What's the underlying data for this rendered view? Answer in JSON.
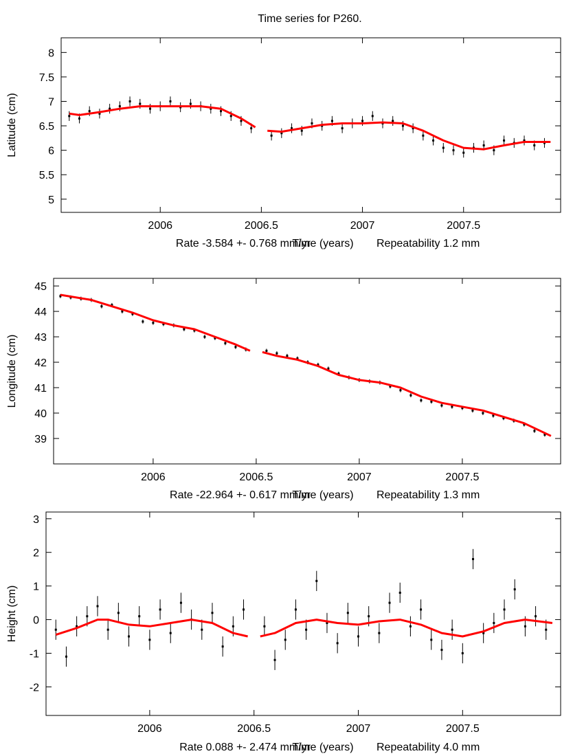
{
  "title": "Time series for P260.",
  "colors": {
    "observations": "#000000",
    "model": "#ff0000",
    "axes": "#000000"
  },
  "chart_data": [
    {
      "type": "scatter",
      "ylabel": "Latitude (cm)",
      "xlabel": "Time (years)",
      "rate_label": "Rate -3.584 +- 0.768 mm/yr",
      "repeatability_label": "Repeatability 1.2 mm",
      "xlim": [
        2005.51,
        2007.98
      ],
      "ylim": [
        4.73,
        8.3
      ],
      "xticks": [
        "2006",
        "2006.5",
        "2007",
        "2007.5"
      ],
      "yticks": [
        "8",
        "7.5",
        "7",
        "6.5",
        "6",
        "5.5",
        "5"
      ],
      "grid": false,
      "observations": {
        "segments": [
          {
            "t_start": 2005.55,
            "t_step": 0.05,
            "err": 0.1,
            "values": [
              6.7,
              6.65,
              6.8,
              6.75,
              6.85,
              6.9,
              7.0,
              6.95,
              6.85,
              6.9,
              7.0,
              6.88,
              6.95,
              6.9,
              6.85,
              6.8,
              6.7,
              6.6,
              6.45
            ]
          },
          {
            "t_start": 2006.55,
            "t_step": 0.05,
            "err": 0.1,
            "values": [
              6.3,
              6.35,
              6.45,
              6.4,
              6.55,
              6.5,
              6.6,
              6.45,
              6.55,
              6.6,
              6.7,
              6.55,
              6.6,
              6.5,
              6.45,
              6.3,
              6.2,
              6.05,
              6.0,
              5.95,
              6.05,
              6.1,
              6.0,
              6.2,
              6.15,
              6.2,
              6.1,
              6.15
            ]
          }
        ]
      },
      "model": [
        [
          [
            2005.55,
            6.75
          ],
          [
            2005.6,
            6.72
          ],
          [
            2005.7,
            6.78
          ],
          [
            2005.8,
            6.85
          ],
          [
            2005.9,
            6.9
          ],
          [
            2006.0,
            6.9
          ],
          [
            2006.1,
            6.9
          ],
          [
            2006.2,
            6.9
          ],
          [
            2006.3,
            6.85
          ],
          [
            2006.4,
            6.65
          ],
          [
            2006.47,
            6.47
          ]
        ],
        [
          [
            2006.53,
            6.4
          ],
          [
            2006.6,
            6.38
          ],
          [
            2006.7,
            6.45
          ],
          [
            2006.8,
            6.52
          ],
          [
            2006.9,
            6.55
          ],
          [
            2007.0,
            6.55
          ],
          [
            2007.1,
            6.57
          ],
          [
            2007.2,
            6.55
          ],
          [
            2007.3,
            6.4
          ],
          [
            2007.4,
            6.2
          ],
          [
            2007.5,
            6.05
          ],
          [
            2007.6,
            6.02
          ],
          [
            2007.7,
            6.1
          ],
          [
            2007.8,
            6.17
          ],
          [
            2007.93,
            6.17
          ]
        ]
      ]
    },
    {
      "type": "scatter",
      "ylabel": "Longitude (cm)",
      "xlabel": "Time (years)",
      "rate_label": "Rate -22.964 +- 0.617 mm/yr",
      "repeatability_label": "Repeatability 1.3 mm",
      "xlim": [
        2005.517,
        2007.977
      ],
      "ylim": [
        38.0,
        45.3
      ],
      "xticks": [
        "2006",
        "2006.5",
        "2007",
        "2007.5"
      ],
      "yticks": [
        "45",
        "44",
        "43",
        "42",
        "41",
        "40",
        "39"
      ],
      "grid": false,
      "observations": {
        "segments": [
          {
            "t_start": 2005.55,
            "t_step": 0.05,
            "err": 0.08,
            "values": [
              44.6,
              44.55,
              44.5,
              44.45,
              44.2,
              44.25,
              44.0,
              43.9,
              43.6,
              43.55,
              43.5,
              43.45,
              43.3,
              43.25,
              43.0,
              42.95,
              42.75,
              42.6,
              42.5
            ]
          },
          {
            "t_start": 2006.55,
            "t_step": 0.05,
            "err": 0.08,
            "values": [
              42.45,
              42.35,
              42.25,
              42.15,
              42.0,
              41.9,
              41.75,
              41.55,
              41.4,
              41.3,
              41.25,
              41.2,
              41.05,
              40.9,
              40.7,
              40.5,
              40.45,
              40.3,
              40.25,
              40.2,
              40.1,
              40.0,
              39.9,
              39.8,
              39.7,
              39.55,
              39.3,
              39.15
            ]
          }
        ]
      },
      "model": [
        [
          [
            2005.55,
            44.65
          ],
          [
            2005.7,
            44.45
          ],
          [
            2005.8,
            44.2
          ],
          [
            2005.9,
            43.95
          ],
          [
            2006.0,
            43.65
          ],
          [
            2006.1,
            43.45
          ],
          [
            2006.2,
            43.3
          ],
          [
            2006.3,
            43.0
          ],
          [
            2006.4,
            42.7
          ],
          [
            2006.47,
            42.45
          ]
        ],
        [
          [
            2006.53,
            42.4
          ],
          [
            2006.6,
            42.25
          ],
          [
            2006.7,
            42.1
          ],
          [
            2006.8,
            41.85
          ],
          [
            2006.9,
            41.5
          ],
          [
            2007.0,
            41.3
          ],
          [
            2007.1,
            41.2
          ],
          [
            2007.2,
            41.0
          ],
          [
            2007.3,
            40.65
          ],
          [
            2007.4,
            40.4
          ],
          [
            2007.5,
            40.25
          ],
          [
            2007.6,
            40.1
          ],
          [
            2007.7,
            39.85
          ],
          [
            2007.8,
            39.6
          ],
          [
            2007.93,
            39.1
          ]
        ]
      ]
    },
    {
      "type": "scatter",
      "ylabel": "Height (cm)",
      "xlabel": "Time (years)",
      "rate_label": "Rate 0.088 +- 2.474 mm/yr",
      "repeatability_label": "Repeatability 4.0 mm",
      "xlim": [
        2005.503,
        2007.97
      ],
      "ylim": [
        -2.85,
        3.2
      ],
      "xticks": [
        "2006",
        "2006.5",
        "2007",
        "2007.5"
      ],
      "yticks": [
        "3",
        "2",
        "1",
        "0",
        "-1",
        "-2"
      ],
      "grid": false,
      "observations": {
        "segments": [
          {
            "t_start": 2005.55,
            "t_step": 0.05,
            "err": 0.3,
            "values": [
              -0.3,
              -1.1,
              -0.2,
              0.1,
              0.4,
              -0.3,
              0.2,
              -0.5,
              0.1,
              -0.6,
              0.3,
              -0.4,
              0.5,
              0.0,
              -0.3,
              0.2,
              -0.8,
              -0.2,
              0.3
            ]
          },
          {
            "t_start": 2006.55,
            "t_step": 0.05,
            "err": 0.3,
            "values": [
              -0.2,
              -1.2,
              -0.6,
              0.3,
              -0.3,
              1.15,
              -0.1,
              -0.7,
              0.2,
              -0.5,
              0.1,
              -0.4,
              0.5,
              0.8,
              -0.2,
              0.3,
              -0.6,
              -0.9,
              -0.3,
              -1.0,
              1.8,
              -0.4,
              -0.1,
              0.3,
              0.9,
              -0.2,
              0.1,
              -0.3
            ]
          }
        ]
      },
      "model": [
        [
          [
            2005.55,
            -0.45
          ],
          [
            2005.65,
            -0.25
          ],
          [
            2005.75,
            0
          ],
          [
            2005.8,
            0
          ],
          [
            2005.9,
            -0.15
          ],
          [
            2006.0,
            -0.2
          ],
          [
            2006.1,
            -0.1
          ],
          [
            2006.2,
            0
          ],
          [
            2006.3,
            -0.1
          ],
          [
            2006.4,
            -0.4
          ],
          [
            2006.47,
            -0.5
          ]
        ],
        [
          [
            2006.53,
            -0.5
          ],
          [
            2006.6,
            -0.4
          ],
          [
            2006.7,
            -0.1
          ],
          [
            2006.8,
            0
          ],
          [
            2006.9,
            -0.1
          ],
          [
            2007.0,
            -0.15
          ],
          [
            2007.1,
            -0.05
          ],
          [
            2007.2,
            0
          ],
          [
            2007.3,
            -0.15
          ],
          [
            2007.4,
            -0.4
          ],
          [
            2007.5,
            -0.5
          ],
          [
            2007.6,
            -0.35
          ],
          [
            2007.7,
            -0.1
          ],
          [
            2007.8,
            0
          ],
          [
            2007.93,
            -0.1
          ]
        ]
      ]
    }
  ]
}
